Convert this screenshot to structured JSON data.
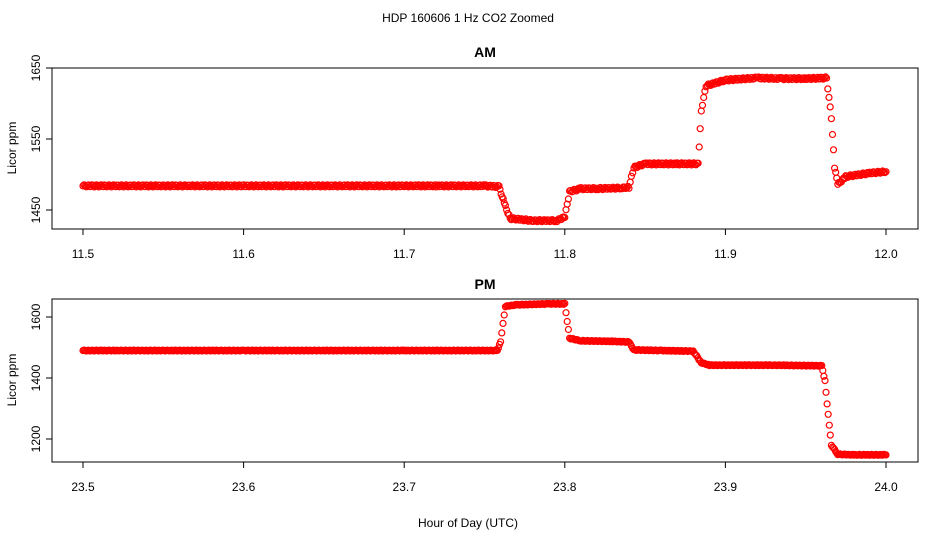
{
  "figure": {
    "title": "HDP  160606  1 Hz CO2 Zoomed",
    "xlabel": "Hour of Day (UTC)",
    "point_color": "#ff0000"
  },
  "chart_data": [
    {
      "type": "scatter",
      "title": "AM",
      "ylabel": "Licor ppm",
      "xlim": [
        11.5,
        12.0
      ],
      "ylim": [
        1425,
        1650
      ],
      "xticks": [
        "11.5",
        "11.6",
        "11.7",
        "11.8",
        "11.9",
        "12.0"
      ],
      "yticks": [
        "1450",
        "1550",
        "1650"
      ],
      "series": [
        {
          "marker": "open-circle",
          "color": "#ff0000",
          "points": [
            [
              11.5,
              1484
            ],
            [
              11.55,
              1484
            ],
            [
              11.6,
              1484
            ],
            [
              11.65,
              1484
            ],
            [
              11.7,
              1484
            ],
            [
              11.72,
              1484
            ],
            [
              11.75,
              1484
            ],
            [
              11.759,
              1483
            ],
            [
              11.763,
              1455
            ],
            [
              11.766,
              1438
            ],
            [
              11.78,
              1435
            ],
            [
              11.795,
              1435
            ],
            [
              11.8,
              1440
            ],
            [
              11.803,
              1476
            ],
            [
              11.81,
              1480
            ],
            [
              11.82,
              1480
            ],
            [
              11.835,
              1481
            ],
            [
              11.84,
              1482
            ],
            [
              11.843,
              1510
            ],
            [
              11.85,
              1515
            ],
            [
              11.87,
              1515
            ],
            [
              11.883,
              1515
            ],
            [
              11.885,
              1590
            ],
            [
              11.888,
              1625
            ],
            [
              11.9,
              1633
            ],
            [
              11.92,
              1636
            ],
            [
              11.935,
              1635
            ],
            [
              11.95,
              1635
            ],
            [
              11.963,
              1636
            ],
            [
              11.966,
              1580
            ],
            [
              11.968,
              1510
            ],
            [
              11.97,
              1486
            ],
            [
              11.975,
              1497
            ],
            [
              11.99,
              1502
            ],
            [
              12.0,
              1504
            ]
          ]
        }
      ]
    },
    {
      "type": "scatter",
      "title": "PM",
      "ylabel": "Licor ppm",
      "xlim": [
        23.5,
        24.0
      ],
      "ylim": [
        1120,
        1660
      ],
      "xticks": [
        "23.5",
        "23.6",
        "23.7",
        "23.8",
        "23.9",
        "24.0"
      ],
      "yticks": [
        "1200",
        "1400",
        "1600"
      ],
      "series": [
        {
          "marker": "open-circle",
          "color": "#ff0000",
          "points": [
            [
              23.5,
              1490
            ],
            [
              23.6,
              1490
            ],
            [
              23.7,
              1490
            ],
            [
              23.758,
              1490
            ],
            [
              23.76,
              1520
            ],
            [
              23.763,
              1635
            ],
            [
              23.77,
              1640
            ],
            [
              23.79,
              1643
            ],
            [
              23.8,
              1643
            ],
            [
              23.803,
              1530
            ],
            [
              23.81,
              1522
            ],
            [
              23.83,
              1520
            ],
            [
              23.84,
              1518
            ],
            [
              23.843,
              1492
            ],
            [
              23.86,
              1490
            ],
            [
              23.88,
              1488
            ],
            [
              23.885,
              1450
            ],
            [
              23.89,
              1442
            ],
            [
              23.93,
              1442
            ],
            [
              23.96,
              1440
            ],
            [
              23.962,
              1390
            ],
            [
              23.964,
              1280
            ],
            [
              23.966,
              1180
            ],
            [
              23.97,
              1150
            ],
            [
              23.98,
              1148
            ],
            [
              24.0,
              1148
            ]
          ]
        }
      ]
    }
  ]
}
